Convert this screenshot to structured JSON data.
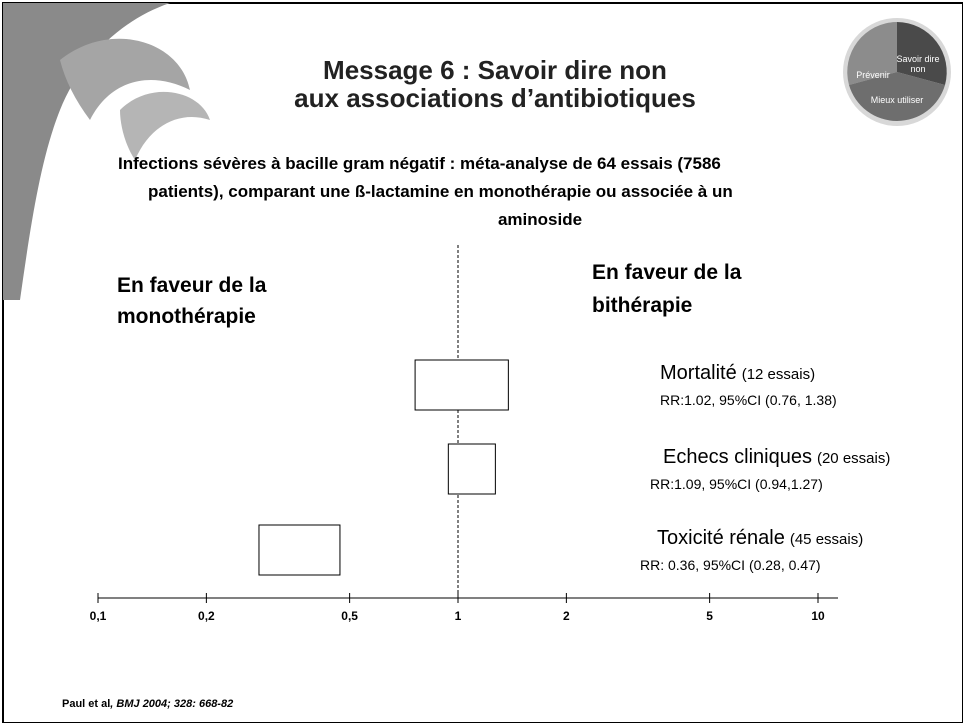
{
  "chart_data": {
    "type": "forest",
    "title": [
      "Message 6 : Savoir dire non",
      "aux associations d’antibiotiques"
    ],
    "subtitle": [
      "Infections sévères à bacille gram négatif : méta-analyse de 64 essais (7586",
      "patients), comparant une ß-lactamine en monothérapie ou associée à un",
      "aminoside"
    ],
    "left_label": [
      "En faveur de la",
      "monothérapie"
    ],
    "right_label": [
      "En faveur de la",
      "bithérapie"
    ],
    "log_x": true,
    "xlim": [
      0.1,
      10
    ],
    "xticks": [
      {
        "value": 0.1,
        "label": "0,1"
      },
      {
        "value": 0.2,
        "label": "0,2"
      },
      {
        "value": 0.5,
        "label": "0,5"
      },
      1,
      2,
      5,
      10
    ],
    "reference": 1,
    "color": "#ffffff",
    "rows": [
      {
        "name": "Mortalité",
        "count": "(12 essais)",
        "stats": "RR:1.02, 95%CI (0.76, 1.38)",
        "ci_low": 0.76,
        "ci_high": 1.38
      },
      {
        "name": "Echecs cliniques",
        "count": "(20 essais)",
        "stats": "RR:1.09, 95%CI (0.94,1.27)",
        "ci_low": 0.94,
        "ci_high": 1.27
      },
      {
        "name": "Toxicité rénale",
        "count": "(45 essais)",
        "stats": "RR: 0.36, 95%CI (0.28, 0.47)",
        "ci_low": 0.28,
        "ci_high": 0.47
      }
    ],
    "source": {
      "author": "Paul et al",
      "ref": ", BMJ 2004; 328: 668-82"
    }
  },
  "logo": {
    "left": "Prévenir",
    "right": [
      "Savoir dire",
      "non"
    ],
    "bottom": "Mieux utiliser"
  }
}
